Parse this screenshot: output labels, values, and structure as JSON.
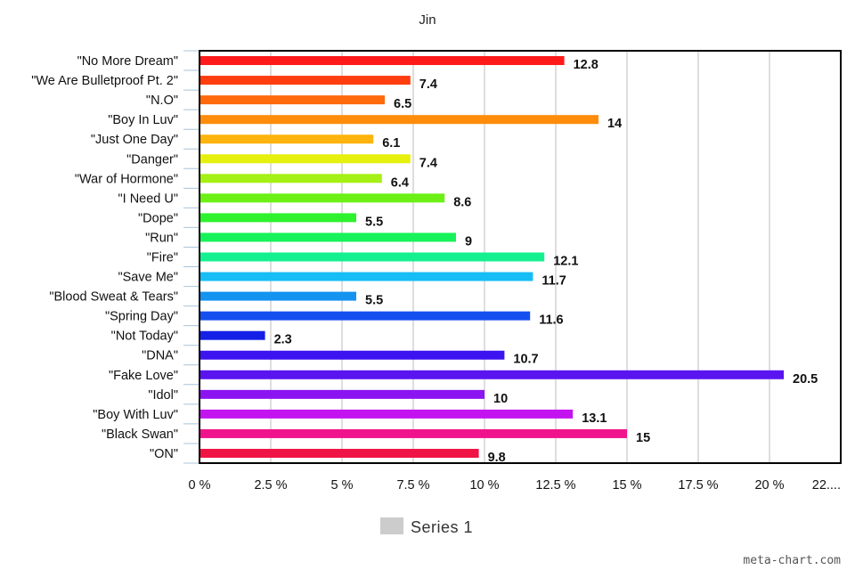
{
  "chart_data": {
    "type": "bar",
    "orientation": "horizontal",
    "title": "Jin",
    "categories": [
      "\"No More Dream\"",
      "\"We Are Bulletproof Pt. 2\"",
      "\"N.O\"",
      "\"Boy In Luv\"",
      "\"Just One Day\"",
      "\"Danger\"",
      "\"War of Hormone\"",
      "\"I Need U\"",
      "\"Dope\"",
      "\"Run\"",
      "\"Fire\"",
      "\"Save Me\"",
      "\"Blood Sweat & Tears\"",
      "\"Spring Day\"",
      "\"Not Today\"",
      "\"DNA\"",
      "\"Fake Love\"",
      "\"Idol\"",
      "\"Boy With Luv\"",
      "\"Black Swan\"",
      "\"ON\""
    ],
    "series": [
      {
        "name": "Series 1",
        "values": [
          12.8,
          7.4,
          6.5,
          14,
          6.1,
          7.4,
          6.4,
          8.6,
          5.5,
          9,
          12.1,
          11.7,
          5.5,
          11.6,
          2.3,
          10.7,
          20.5,
          10,
          13.1,
          15,
          9.8
        ],
        "value_labels": [
          "12.8",
          "7.4",
          "6.5",
          "14",
          "6.1",
          "7.4",
          "6.4",
          "8.6",
          "5.5",
          "9",
          "12.1",
          "11.7",
          "5.5",
          "11.6",
          "2.3",
          "10.7",
          "20.5",
          "10",
          "13.1",
          "15",
          "9.8"
        ],
        "colors": [
          "#ff1a1a",
          "#ff3d0f",
          "#ff6a0d",
          "#ff8c0a",
          "#ffb30d",
          "#e6f00d",
          "#a5f015",
          "#6cf015",
          "#2df22d",
          "#17f25a",
          "#14f090",
          "#17bdf5",
          "#1493f0",
          "#1450f0",
          "#1420e6",
          "#3d14f0",
          "#5a14f0",
          "#8c14f0",
          "#c314f0",
          "#f0148c",
          "#f01446"
        ]
      }
    ],
    "xlim": [
      0,
      22.5
    ],
    "xticks": [
      0,
      2.5,
      5,
      7.5,
      10,
      12.5,
      15,
      17.5,
      20,
      22.5
    ],
    "xtick_labels": [
      "0 %",
      "2.5 %",
      "5 %",
      "7.5 %",
      "10 %",
      "12.5 %",
      "15 %",
      "17.5 %",
      "20 %",
      "22...."
    ],
    "grid": "vertical",
    "legend": {
      "position": "bottom-center",
      "entries": [
        "Series 1"
      ],
      "swatch_color": "#cccccc"
    }
  },
  "credit": "meta-chart.com"
}
